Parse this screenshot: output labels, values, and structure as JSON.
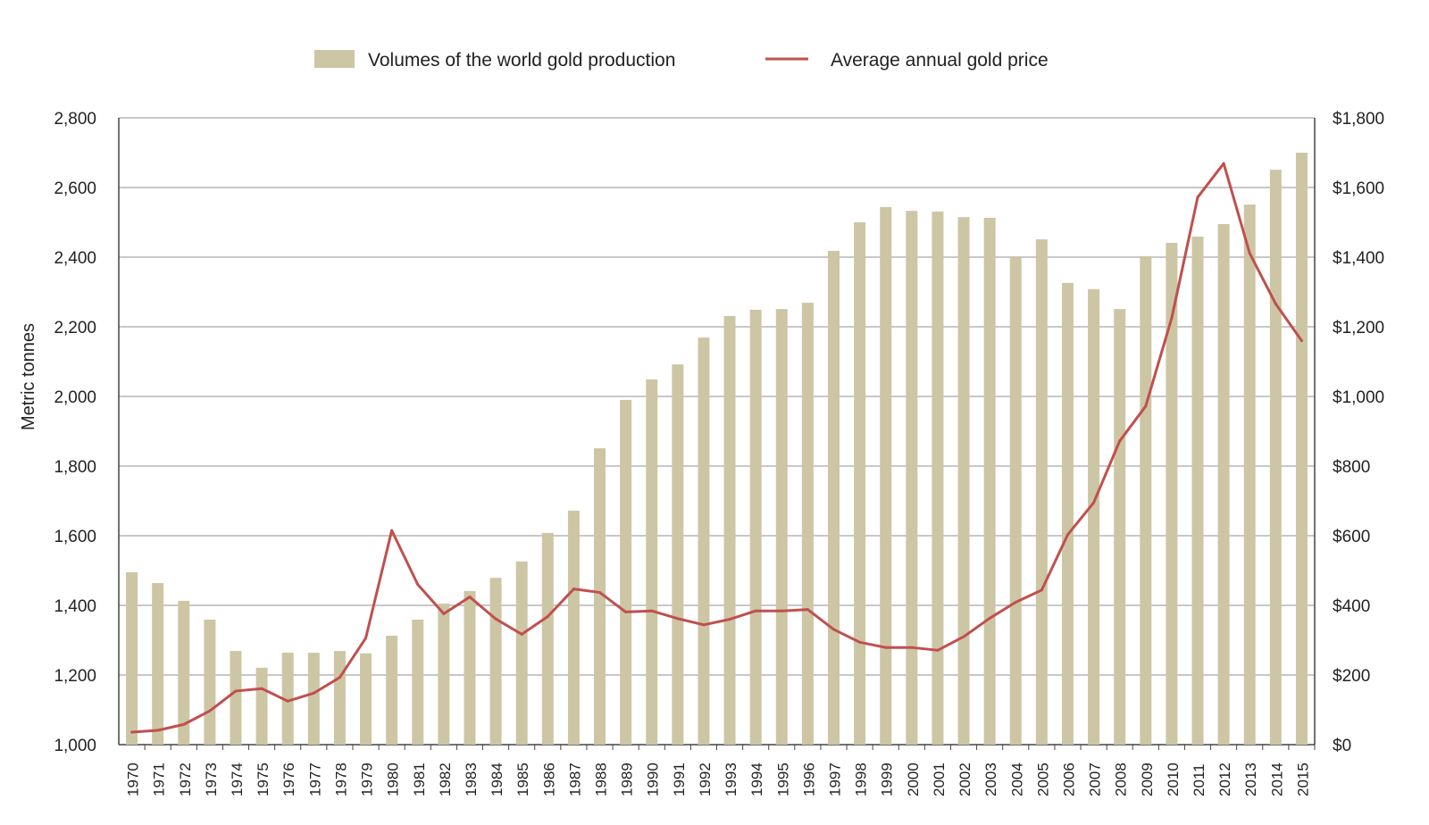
{
  "chart_data": {
    "type": "bar+line",
    "categories": [
      "1970",
      "1971",
      "1972",
      "1973",
      "1974",
      "1975",
      "1976",
      "1977",
      "1978",
      "1979",
      "1980",
      "1981",
      "1982",
      "1983",
      "1984",
      "1985",
      "1986",
      "1987",
      "1988",
      "1989",
      "1990",
      "1991",
      "1992",
      "1993",
      "1994",
      "1995",
      "1996",
      "1997",
      "1998",
      "1999",
      "2000",
      "2001",
      "2002",
      "2003",
      "2004",
      "2005",
      "2006",
      "2007",
      "2008",
      "2009",
      "2010",
      "2011",
      "2012",
      "2013",
      "2014",
      "2015"
    ],
    "series": [
      {
        "name": "Volumes of the world gold production",
        "type": "bar",
        "axis": "left",
        "color": "#cdc6a5",
        "values": [
          1495,
          1464,
          1413,
          1359,
          1269,
          1221,
          1264,
          1264,
          1269,
          1262,
          1313,
          1359,
          1405,
          1441,
          1479,
          1526,
          1608,
          1672,
          1851,
          1990,
          2049,
          2092,
          2169,
          2231,
          2249,
          2251,
          2269,
          2418,
          2500,
          2544,
          2533,
          2531,
          2515,
          2513,
          2400,
          2451,
          2326,
          2308,
          2251,
          2403,
          2441,
          2459,
          2495,
          2551,
          2651,
          2700
        ]
      },
      {
        "name": "Average annual gold price",
        "type": "line",
        "axis": "right",
        "color": "#c0504d",
        "values": [
          36,
          41,
          58,
          97,
          154,
          161,
          125,
          148,
          193,
          306,
          615,
          460,
          376,
          424,
          361,
          317,
          368,
          447,
          437,
          381,
          384,
          362,
          344,
          360,
          384,
          384,
          388,
          331,
          294,
          279,
          279,
          271,
          310,
          363,
          409,
          444,
          603,
          695,
          872,
          972,
          1225,
          1572,
          1669,
          1411,
          1266,
          1160
        ]
      }
    ],
    "ylabel": "Metric tonnes",
    "ylim": [
      1000,
      2800
    ],
    "yticks": [
      "1,000",
      "1,200",
      "1,400",
      "1,600",
      "1,800",
      "2,000",
      "2,200",
      "2,400",
      "2,600",
      "2,800"
    ],
    "y2lim": [
      0,
      1800
    ],
    "y2ticks": [
      "$0",
      "$200",
      "$400",
      "$600",
      "$800",
      "$1,000",
      "$1,200",
      "$1,400",
      "$1,600",
      "$1,800"
    ],
    "grid": true,
    "legend": "top"
  }
}
